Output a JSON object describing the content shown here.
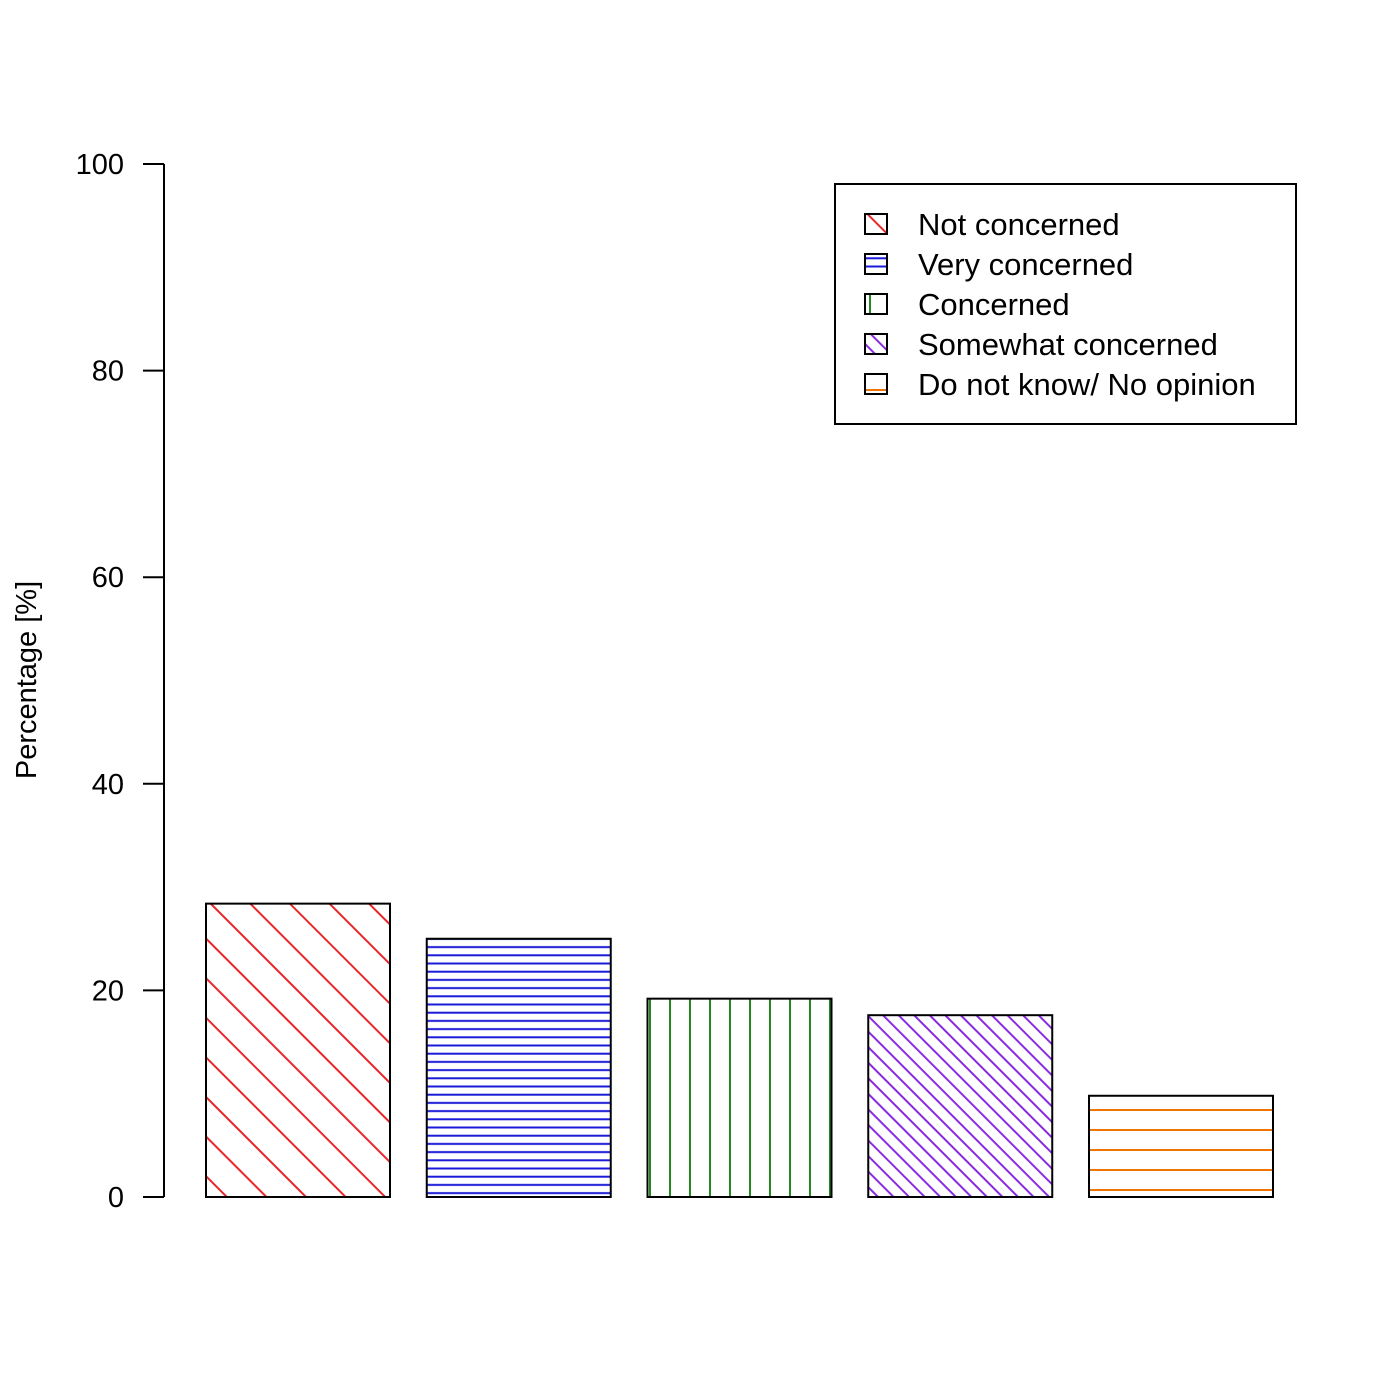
{
  "chart_data": {
    "type": "bar",
    "title": "",
    "xlabel": "",
    "ylabel": "Percentage [%]",
    "ylim": [
      0,
      100
    ],
    "yticks": [
      0,
      20,
      40,
      60,
      80,
      100
    ],
    "grid": false,
    "legend_position": "top-right",
    "categories": [
      "Not concerned",
      "Very  concerned",
      "Concerned",
      "Somewhat concerned",
      "Do not know/ No opinion"
    ],
    "values": [
      28.4,
      25.0,
      19.2,
      17.6,
      9.8
    ],
    "colors": [
      "#e8272a",
      "#1a1ad9",
      "#1f8a1f",
      "#8a2be2",
      "#ee7600"
    ],
    "hatch": [
      "diagonal-wide",
      "horizontal-dense",
      "vertical",
      "diagonal-dense",
      "horizontal-wide"
    ]
  }
}
